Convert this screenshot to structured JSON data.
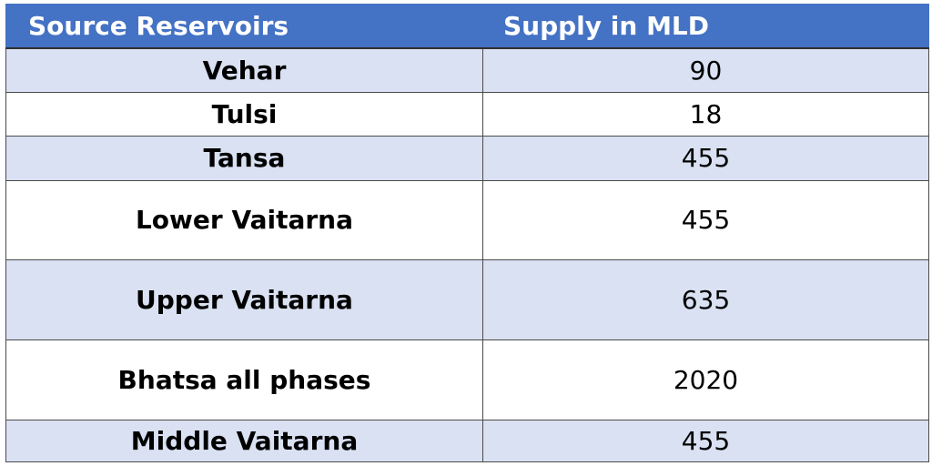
{
  "table": {
    "headers": [
      "Source Reservoirs",
      "Supply in MLD"
    ],
    "rows": [
      {
        "source": "Vehar",
        "supply": "90"
      },
      {
        "source": "Tulsi",
        "supply": "18"
      },
      {
        "source": "Tansa",
        "supply": "455"
      },
      {
        "source": "Lower Vaitarna",
        "supply": "455"
      },
      {
        "source": "Upper Vaitarna",
        "supply": "635"
      },
      {
        "source": "Bhatsa all phases",
        "supply": "2020"
      },
      {
        "source": "Middle Vaitarna",
        "supply": "455"
      }
    ]
  },
  "colors": {
    "header_bg": "#4472c4",
    "row_alt_bg": "#d9e1f2",
    "row_plain_bg": "#ffffff"
  }
}
